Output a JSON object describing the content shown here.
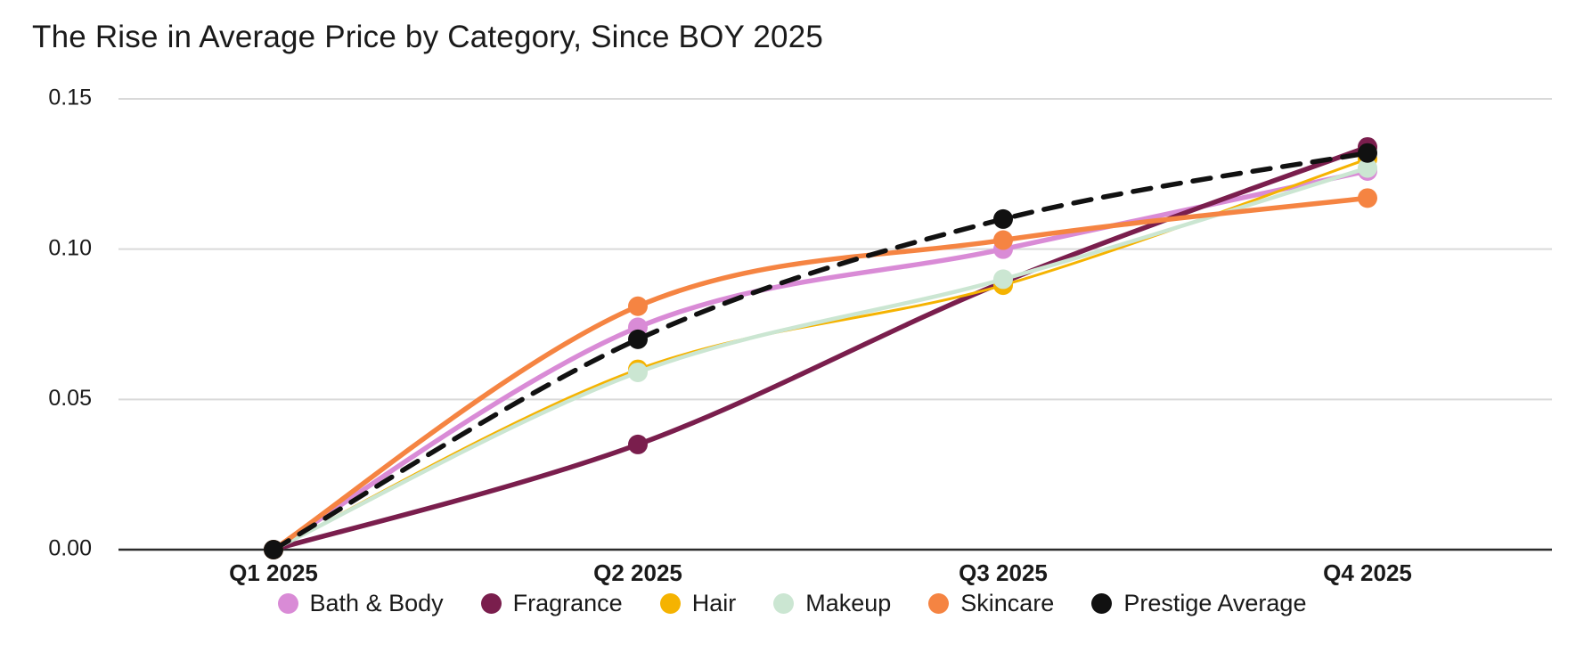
{
  "title": "The Rise in Average Price by Category, Since BOY 2025",
  "chart_data": {
    "type": "line",
    "title": "The Rise in Average Price by Category, Since BOY 2025",
    "categories": [
      "Q1 2025",
      "Q2 2025",
      "Q3 2025",
      "Q4 2025"
    ],
    "series": [
      {
        "name": "Bath & Body",
        "color": "#D98BD6",
        "dashed": false,
        "line_width": 5.5,
        "values": [
          0.0,
          0.074,
          0.1,
          0.126
        ]
      },
      {
        "name": "Fragrance",
        "color": "#7A1E4D",
        "dashed": false,
        "line_width": 5.5,
        "values": [
          0.0,
          0.035,
          0.089,
          0.134
        ]
      },
      {
        "name": "Hair",
        "color": "#F5B301",
        "dashed": false,
        "line_width": 3.0,
        "values": [
          0.0,
          0.06,
          0.088,
          0.13
        ]
      },
      {
        "name": "Makeup",
        "color": "#CBE6D2",
        "dashed": false,
        "line_width": 4.5,
        "values": [
          0.0,
          0.059,
          0.09,
          0.127
        ]
      },
      {
        "name": "Skincare",
        "color": "#F58442",
        "dashed": false,
        "line_width": 5.5,
        "values": [
          0.0,
          0.081,
          0.103,
          0.117
        ]
      },
      {
        "name": "Prestige Average",
        "color": "#111111",
        "dashed": true,
        "line_width": 5.5,
        "values": [
          0.0,
          0.07,
          0.11,
          0.132
        ]
      }
    ],
    "xlabel": "",
    "ylabel": "",
    "ylim": [
      0,
      0.15
    ],
    "yticks": [
      0.0,
      0.05,
      0.1,
      0.15
    ],
    "ytick_labels": [
      "0.00",
      "0.05",
      "0.10",
      "0.15"
    ],
    "grid": true,
    "legend_position": "bottom",
    "marker": "circle",
    "marker_radius": 11
  },
  "colors": {
    "background": "#FFFFFF",
    "grid": "#D9D9D9",
    "axis": "#2B2B2B",
    "text": "#1A1A1A"
  }
}
